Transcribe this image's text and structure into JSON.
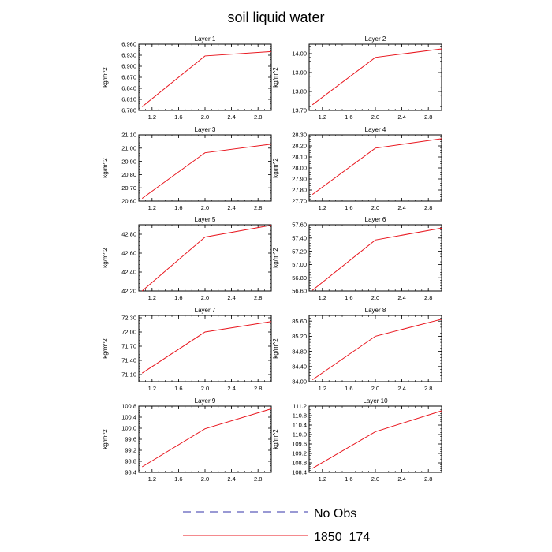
{
  "figure": {
    "title": "soil liquid water"
  },
  "legend": [
    {
      "label": "No Obs",
      "color": "#3333aa",
      "dashed": true
    },
    {
      "label": "1850_174",
      "color": "#e8141c",
      "dashed": false
    }
  ],
  "chart_data": [
    {
      "type": "line",
      "title": "Layer 1",
      "ylabel": "kg/m^2",
      "xlim": [
        1.0,
        3.0
      ],
      "ylim": [
        6.78,
        6.96
      ],
      "x_ticks": [
        1.2,
        1.6,
        2.0,
        2.4,
        2.8
      ],
      "x_tick_labels": [
        "1.2",
        "1.6",
        "2.0",
        "2.4",
        "2.8"
      ],
      "y_ticks": [
        6.78,
        6.81,
        6.84,
        6.87,
        6.9,
        6.93,
        6.96
      ],
      "y_tick_labels": [
        "6.780",
        "6.810",
        "6.840",
        "6.870",
        "6.900",
        "6.930",
        "6.960"
      ],
      "series": [
        {
          "name": "1850_174",
          "color": "#e8141c",
          "x": [
            1.05,
            2.0,
            3.0
          ],
          "y": [
            6.79,
            6.928,
            6.94
          ]
        }
      ]
    },
    {
      "type": "line",
      "title": "Layer 2",
      "ylabel": "kg/m^2",
      "xlim": [
        1.0,
        3.0
      ],
      "ylim": [
        13.7,
        14.05
      ],
      "x_ticks": [
        1.2,
        1.6,
        2.0,
        2.4,
        2.8
      ],
      "x_tick_labels": [
        "1.2",
        "1.6",
        "2.0",
        "2.4",
        "2.8"
      ],
      "y_ticks": [
        13.7,
        13.8,
        13.9,
        14.0
      ],
      "y_tick_labels": [
        "13.70",
        "13.80",
        "13.90",
        "14.00"
      ],
      "series": [
        {
          "name": "1850_174",
          "color": "#e8141c",
          "x": [
            1.05,
            2.0,
            3.0
          ],
          "y": [
            13.73,
            13.98,
            14.025
          ]
        }
      ]
    },
    {
      "type": "line",
      "title": "Layer 3",
      "ylabel": "kg/m^2",
      "xlim": [
        1.0,
        3.0
      ],
      "ylim": [
        20.6,
        21.1
      ],
      "x_ticks": [
        1.2,
        1.6,
        2.0,
        2.4,
        2.8
      ],
      "x_tick_labels": [
        "1.2",
        "1.6",
        "2.0",
        "2.4",
        "2.8"
      ],
      "y_ticks": [
        20.6,
        20.7,
        20.8,
        20.9,
        21.0,
        21.1
      ],
      "y_tick_labels": [
        "20.60",
        "20.70",
        "20.80",
        "20.90",
        "21.00",
        "21.10"
      ],
      "series": [
        {
          "name": "1850_174",
          "color": "#e8141c",
          "x": [
            1.05,
            2.0,
            3.0
          ],
          "y": [
            20.62,
            20.965,
            21.03
          ]
        }
      ]
    },
    {
      "type": "line",
      "title": "Layer 4",
      "ylabel": "kg/m^2",
      "xlim": [
        1.0,
        3.0
      ],
      "ylim": [
        27.7,
        28.3
      ],
      "x_ticks": [
        1.2,
        1.6,
        2.0,
        2.4,
        2.8
      ],
      "x_tick_labels": [
        "1.2",
        "1.6",
        "2.0",
        "2.4",
        "2.8"
      ],
      "y_ticks": [
        27.7,
        27.8,
        27.9,
        28.0,
        28.1,
        28.2,
        28.3
      ],
      "y_tick_labels": [
        "27.70",
        "27.80",
        "27.90",
        "28.00",
        "28.10",
        "28.20",
        "28.30"
      ],
      "series": [
        {
          "name": "1850_174",
          "color": "#e8141c",
          "x": [
            1.05,
            2.0,
            3.0
          ],
          "y": [
            27.76,
            28.18,
            28.265
          ]
        }
      ]
    },
    {
      "type": "line",
      "title": "Layer 5",
      "ylabel": "kg/m^2",
      "xlim": [
        1.0,
        3.0
      ],
      "ylim": [
        42.2,
        42.9
      ],
      "x_ticks": [
        1.2,
        1.6,
        2.0,
        2.4,
        2.8
      ],
      "x_tick_labels": [
        "1.2",
        "1.6",
        "2.0",
        "2.4",
        "2.8"
      ],
      "y_ticks": [
        42.2,
        42.4,
        42.6,
        42.8
      ],
      "y_tick_labels": [
        "42.20",
        "42.40",
        "42.60",
        "42.80"
      ],
      "series": [
        {
          "name": "1850_174",
          "color": "#e8141c",
          "x": [
            1.05,
            2.0,
            3.0
          ],
          "y": [
            42.2,
            42.77,
            42.895
          ]
        }
      ]
    },
    {
      "type": "line",
      "title": "Layer 6",
      "ylabel": "kg/m^2",
      "xlim": [
        1.0,
        3.0
      ],
      "ylim": [
        56.6,
        57.6
      ],
      "x_ticks": [
        1.2,
        1.6,
        2.0,
        2.4,
        2.8
      ],
      "x_tick_labels": [
        "1.2",
        "1.6",
        "2.0",
        "2.4",
        "2.8"
      ],
      "y_ticks": [
        56.6,
        56.8,
        57.0,
        57.2,
        57.4,
        57.6
      ],
      "y_tick_labels": [
        "56.60",
        "56.80",
        "57.00",
        "57.20",
        "57.40",
        "57.60"
      ],
      "series": [
        {
          "name": "1850_174",
          "color": "#e8141c",
          "x": [
            1.05,
            2.0,
            3.0
          ],
          "y": [
            56.61,
            57.37,
            57.55
          ]
        }
      ]
    },
    {
      "type": "line",
      "title": "Layer 7",
      "ylabel": "kg/m^2",
      "xlim": [
        1.0,
        3.0
      ],
      "ylim": [
        70.95,
        72.35
      ],
      "x_ticks": [
        1.2,
        1.6,
        2.0,
        2.4,
        2.8
      ],
      "x_tick_labels": [
        "1.2",
        "1.6",
        "2.0",
        "2.4",
        "2.8"
      ],
      "y_ticks": [
        71.1,
        71.4,
        71.7,
        72.0,
        72.3
      ],
      "y_tick_labels": [
        "71.10",
        "71.40",
        "71.70",
        "72.00",
        "72.30"
      ],
      "series": [
        {
          "name": "1850_174",
          "color": "#e8141c",
          "x": [
            1.05,
            2.0,
            3.0
          ],
          "y": [
            71.13,
            72.0,
            72.22
          ]
        }
      ]
    },
    {
      "type": "line",
      "title": "Layer 8",
      "ylabel": "kg/m^2",
      "xlim": [
        1.0,
        3.0
      ],
      "ylim": [
        84.0,
        85.75
      ],
      "x_ticks": [
        1.2,
        1.6,
        2.0,
        2.4,
        2.8
      ],
      "x_tick_labels": [
        "1.2",
        "1.6",
        "2.0",
        "2.4",
        "2.8"
      ],
      "y_ticks": [
        84.0,
        84.4,
        84.8,
        85.2,
        85.6
      ],
      "y_tick_labels": [
        "84.00",
        "84.40",
        "84.80",
        "85.20",
        "85.60"
      ],
      "series": [
        {
          "name": "1850_174",
          "color": "#e8141c",
          "x": [
            1.05,
            2.0,
            3.0
          ],
          "y": [
            84.05,
            85.2,
            85.65
          ]
        }
      ]
    },
    {
      "type": "line",
      "title": "Layer 9",
      "ylabel": "kg/m^2",
      "xlim": [
        1.0,
        3.0
      ],
      "ylim": [
        98.4,
        100.8
      ],
      "x_ticks": [
        1.2,
        1.6,
        2.0,
        2.4,
        2.8
      ],
      "x_tick_labels": [
        "1.2",
        "1.6",
        "2.0",
        "2.4",
        "2.8"
      ],
      "y_ticks": [
        98.4,
        98.8,
        99.2,
        99.6,
        100.0,
        100.4,
        100.8
      ],
      "y_tick_labels": [
        "98.4",
        "98.8",
        "99.2",
        "99.6",
        "100.0",
        "100.4",
        "100.8"
      ],
      "series": [
        {
          "name": "1850_174",
          "color": "#e8141c",
          "x": [
            1.05,
            2.0,
            3.0
          ],
          "y": [
            98.6,
            99.98,
            100.7
          ]
        }
      ]
    },
    {
      "type": "line",
      "title": "Layer 10",
      "ylabel": "kg/m^2",
      "xlim": [
        1.0,
        3.0
      ],
      "ylim": [
        108.4,
        111.2
      ],
      "x_ticks": [
        1.2,
        1.6,
        2.0,
        2.4,
        2.8
      ],
      "x_tick_labels": [
        "1.2",
        "1.6",
        "2.0",
        "2.4",
        "2.8"
      ],
      "y_ticks": [
        108.4,
        108.8,
        109.2,
        109.6,
        110.0,
        110.4,
        110.8,
        111.2
      ],
      "y_tick_labels": [
        "108.4",
        "108.8",
        "109.2",
        "109.6",
        "110.0",
        "110.4",
        "110.8",
        "111.2"
      ],
      "series": [
        {
          "name": "1850_174",
          "color": "#e8141c",
          "x": [
            1.05,
            2.0,
            3.0
          ],
          "y": [
            108.57,
            110.12,
            111.0
          ]
        }
      ]
    }
  ]
}
